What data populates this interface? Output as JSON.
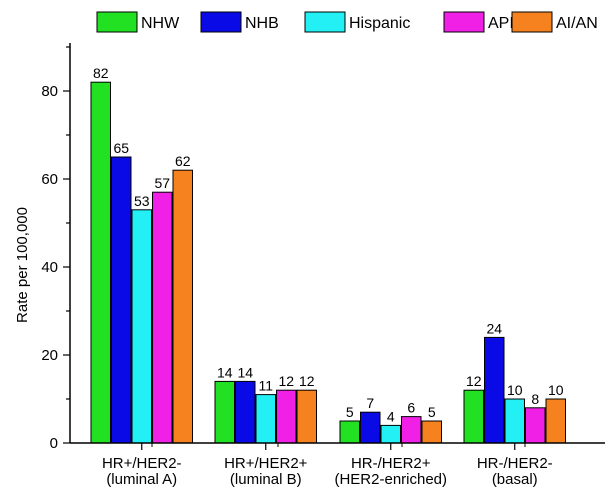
{
  "chart_data": {
    "type": "bar",
    "title": "",
    "xlabel": "",
    "ylabel": "Rate per 100,000",
    "ylim": [
      0,
      90
    ],
    "yticks": [
      0,
      20,
      40,
      60,
      80
    ],
    "grid": false,
    "legend_position": "top",
    "categories": [
      [
        "HR+/HER2-",
        "(luminal A)"
      ],
      [
        "HR+/HER2+",
        "(luminal B)"
      ],
      [
        "HR-/HER2+",
        "(HER2-enriched)"
      ],
      [
        "HR-/HER2-",
        "(basal)"
      ]
    ],
    "series": [
      {
        "name": "NHW",
        "color": "#22e022",
        "values": [
          82,
          14,
          5,
          12
        ]
      },
      {
        "name": "NHB",
        "color": "#0a0ae6",
        "values": [
          65,
          14,
          7,
          24
        ]
      },
      {
        "name": "Hispanic",
        "color": "#22f0f5",
        "values": [
          53,
          11,
          4,
          10
        ]
      },
      {
        "name": "API",
        "color": "#f020e6",
        "values": [
          57,
          12,
          6,
          8
        ]
      },
      {
        "name": "AI/AN",
        "color": "#f5821e",
        "values": [
          62,
          12,
          5,
          10
        ]
      }
    ]
  }
}
